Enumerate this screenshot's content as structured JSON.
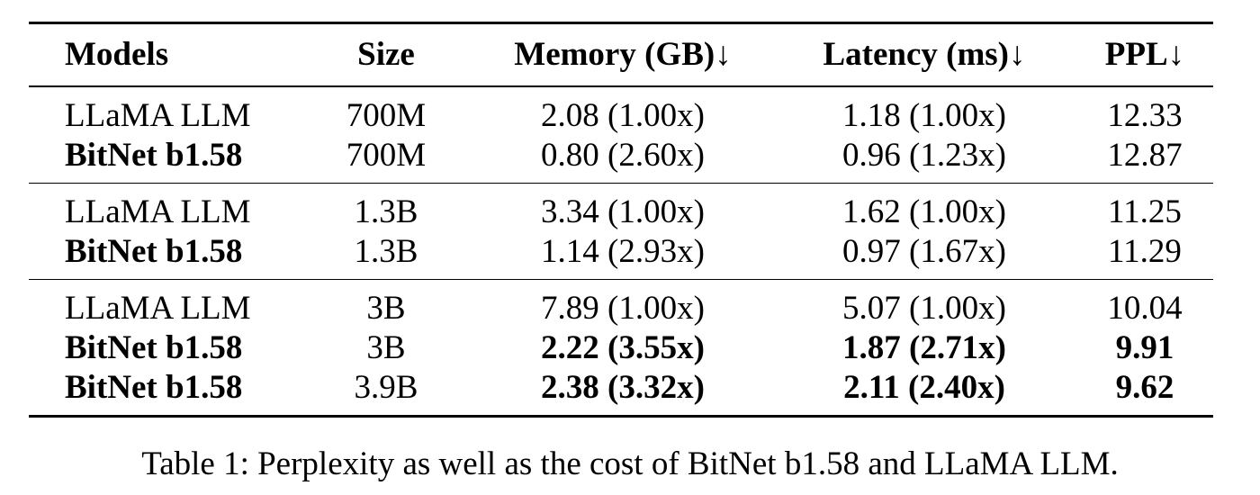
{
  "table": {
    "headers": {
      "models": "Models",
      "size": "Size",
      "memory": "Memory (GB)↓",
      "latency": "Latency (ms)↓",
      "ppl": "PPL↓"
    },
    "groups": [
      [
        {
          "model": "LLaMA LLM",
          "size": "700M",
          "memory": "2.08 (1.00x)",
          "latency": "1.18 (1.00x)",
          "ppl": "12.33"
        },
        {
          "model": "BitNet b1.58",
          "size": "700M",
          "memory": "0.80 (2.60x)",
          "latency": "0.96 (1.23x)",
          "ppl": "12.87"
        }
      ],
      [
        {
          "model": "LLaMA LLM",
          "size": "1.3B",
          "memory": "3.34 (1.00x)",
          "latency": "1.62 (1.00x)",
          "ppl": "11.25"
        },
        {
          "model": "BitNet b1.58",
          "size": "1.3B",
          "memory": "1.14 (2.93x)",
          "latency": "0.97 (1.67x)",
          "ppl": "11.29"
        }
      ],
      [
        {
          "model": "LLaMA LLM",
          "size": "3B",
          "memory": "7.89 (1.00x)",
          "latency": "5.07 (1.00x)",
          "ppl": "10.04"
        },
        {
          "model": "BitNet b1.58",
          "size": "3B",
          "memory": "2.22 (3.55x)",
          "latency": "1.87 (2.71x)",
          "ppl": "9.91"
        },
        {
          "model": "BitNet b1.58",
          "size": "3.9B",
          "memory": "2.38 (3.32x)",
          "latency": "2.11 (2.40x)",
          "ppl": "9.62"
        }
      ]
    ]
  },
  "caption": "Table 1: Perplexity as well as the cost of BitNet b1.58 and LLaMA LLM."
}
